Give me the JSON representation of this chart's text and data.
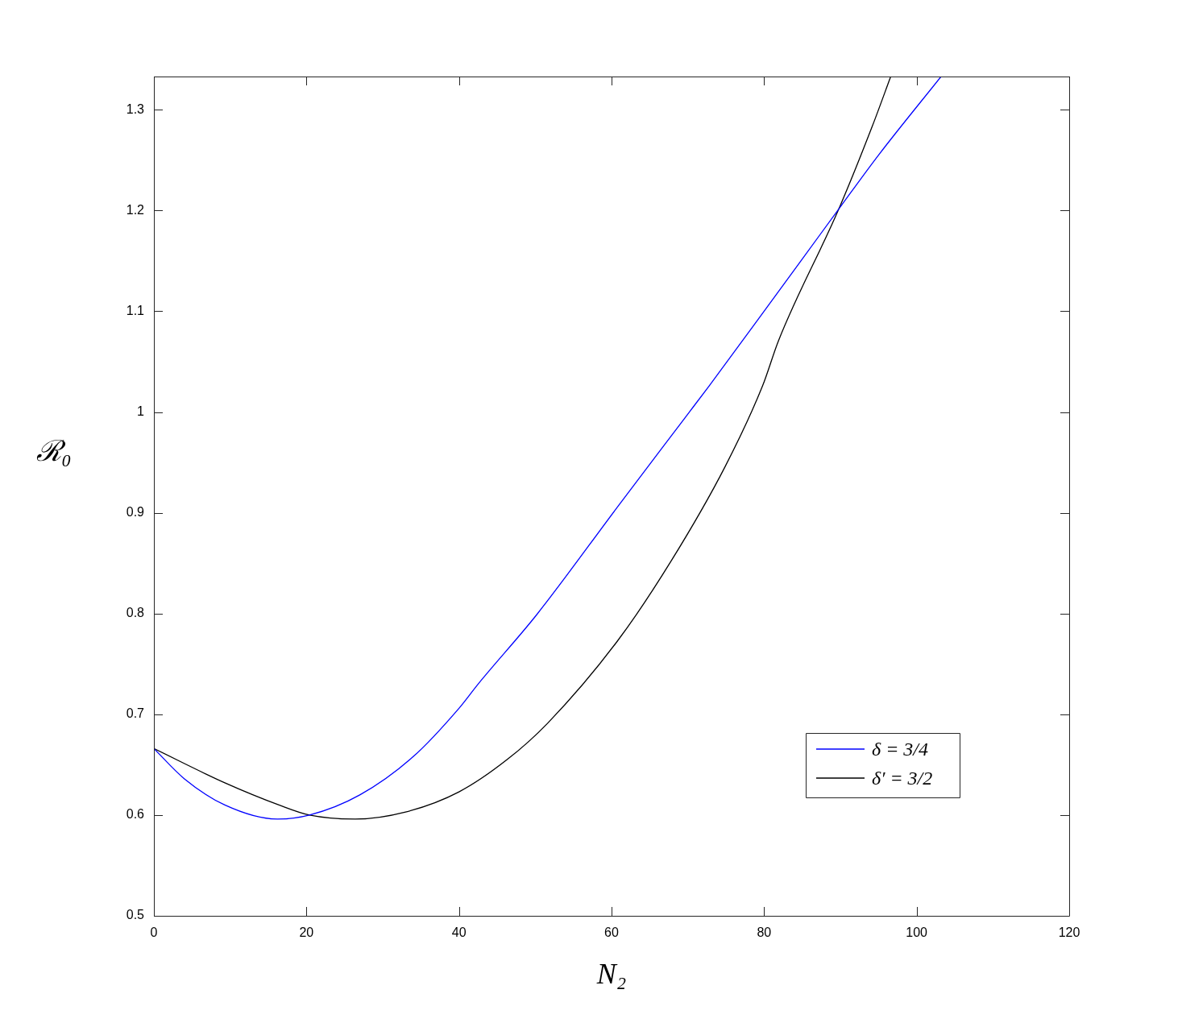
{
  "chart_data": {
    "type": "line",
    "xlabel": "N₂",
    "ylabel": "ℛ₀",
    "xlim": [
      0,
      120
    ],
    "xticks": [
      0,
      20,
      40,
      60,
      80,
      100,
      120
    ],
    "ylim": [
      0.5,
      1.333
    ],
    "yticks": [
      0.5,
      0.6,
      0.7,
      0.8,
      0.9,
      1,
      1.1,
      1.2,
      1.3
    ],
    "legend": "bottom right",
    "line_style": "solid",
    "marker": "none",
    "series": [
      {
        "name": "δ = 3/4",
        "color": "#0000ff",
        "x": [
          0,
          4,
          9.3,
          16.2,
          20.4,
          27,
          34,
          40,
          42.5,
          50.2,
          60.8,
          69.6,
          72.8,
          80,
          89.8,
          95,
          103.2
        ],
        "values": [
          0.666,
          0.636,
          0.61,
          0.596,
          0.6,
          0.62,
          0.658,
          0.706,
          0.73,
          0.799,
          0.906,
          0.994,
          1.026,
          1.1,
          1.2016,
          1.255,
          1.333
        ]
      },
      {
        "name": "δ′ = 3/2",
        "color": "#000000",
        "x": [
          0,
          9.3,
          16.4,
          20.4,
          26.4,
          33,
          40,
          46.3,
          51.6,
          60.8,
          67.8,
          74.9,
          79.8,
          81.9,
          89.8,
          94.2,
          96.6
        ],
        "values": [
          0.666,
          0.632,
          0.61,
          0.6,
          0.596,
          0.603,
          0.623,
          0.655,
          0.691,
          0.773,
          0.852,
          0.946,
          1.026,
          1.071,
          1.2016,
          1.284,
          1.333
        ]
      }
    ]
  }
}
